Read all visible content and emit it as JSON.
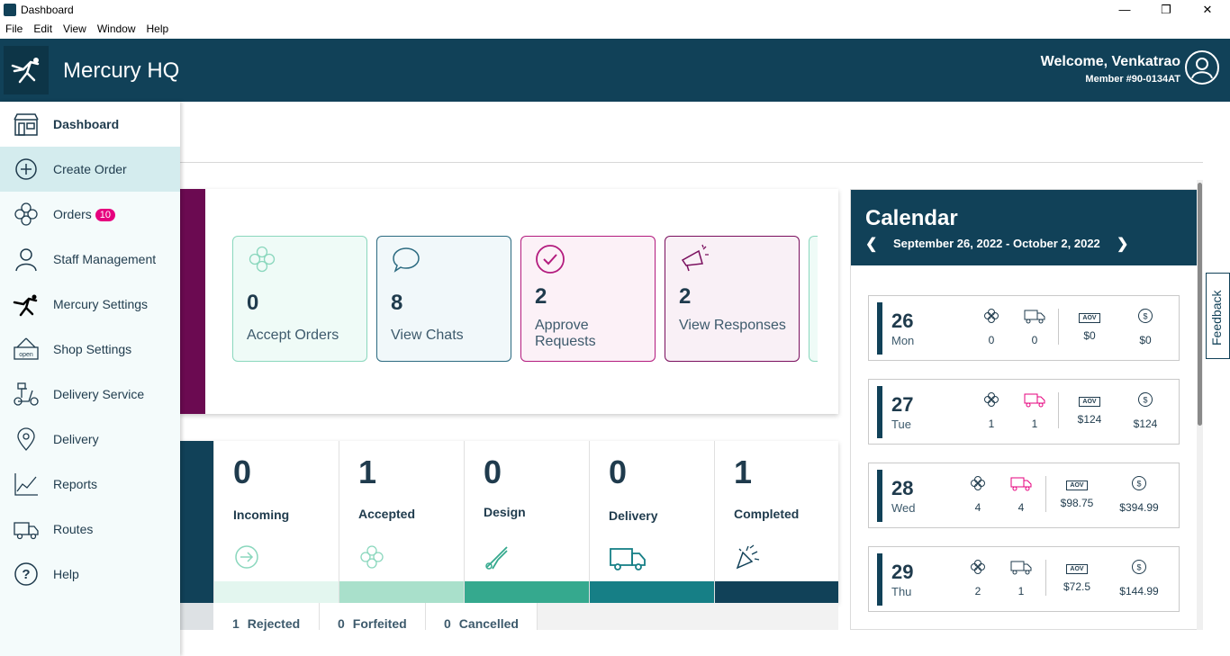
{
  "window": {
    "title": "Dashboard"
  },
  "menu": [
    "File",
    "Edit",
    "View",
    "Window",
    "Help"
  ],
  "header": {
    "brand": "Mercury HQ",
    "welcome": "Welcome, Venkatrao",
    "member": "Member #90-0134AT"
  },
  "sidebar": {
    "items": [
      {
        "label": "Dashboard",
        "icon": "storefront-icon"
      },
      {
        "label": "Create Order",
        "icon": "plus-circle-icon"
      },
      {
        "label": "Orders",
        "icon": "flower-icon",
        "badge": "10"
      },
      {
        "label": "Staff Management",
        "icon": "person-icon"
      },
      {
        "label": "Mercury Settings",
        "icon": "mercury-logo-icon"
      },
      {
        "label": "Shop Settings",
        "icon": "open-sign-icon"
      },
      {
        "label": "Delivery Service",
        "icon": "scooter-icon"
      },
      {
        "label": "Delivery",
        "icon": "location-pin-icon"
      },
      {
        "label": "Reports",
        "icon": "line-chart-icon"
      },
      {
        "label": "Routes",
        "icon": "truck-icon"
      },
      {
        "label": "Help",
        "icon": "question-circle-icon"
      }
    ]
  },
  "tiles": [
    {
      "value": "0",
      "label": "Accept Orders"
    },
    {
      "value": "8",
      "label": "View Chats"
    },
    {
      "value": "2",
      "label": "Approve Requests"
    },
    {
      "value": "2",
      "label": "View Responses"
    }
  ],
  "stats": [
    {
      "value": "0",
      "label": "Incoming",
      "color": "#e3f6ef"
    },
    {
      "value": "1",
      "label": "Accepted",
      "color": "#a9e0cb"
    },
    {
      "value": "0",
      "label": "Design",
      "color": "#35a98e"
    },
    {
      "value": "0",
      "label": "Delivery",
      "color": "#167f86"
    },
    {
      "value": "1",
      "label": "Completed",
      "color": "#114158"
    }
  ],
  "footer": [
    {
      "value": "1",
      "label": "Rejected"
    },
    {
      "value": "0",
      "label": "Forfeited"
    },
    {
      "value": "0",
      "label": "Cancelled"
    }
  ],
  "calendar": {
    "title": "Calendar",
    "range": "September 26, 2022  - October 2, 2022",
    "days": [
      {
        "num": "26",
        "name": "Mon",
        "orders": "0",
        "deliveries": "0",
        "aov": "$0",
        "total": "$0"
      },
      {
        "num": "27",
        "name": "Tue",
        "orders": "1",
        "deliveries": "1",
        "aov": "$124",
        "total": "$124"
      },
      {
        "num": "28",
        "name": "Wed",
        "orders": "4",
        "deliveries": "4",
        "aov": "$98.75",
        "total": "$394.99"
      },
      {
        "num": "29",
        "name": "Thu",
        "orders": "2",
        "deliveries": "1",
        "aov": "$72.5",
        "total": "$144.99"
      }
    ]
  },
  "aov_label": "AOV",
  "feedback": "Feedback",
  "colors": {
    "primary": "#114158",
    "accent": "#e6007e",
    "purple": "#6b0a51"
  }
}
